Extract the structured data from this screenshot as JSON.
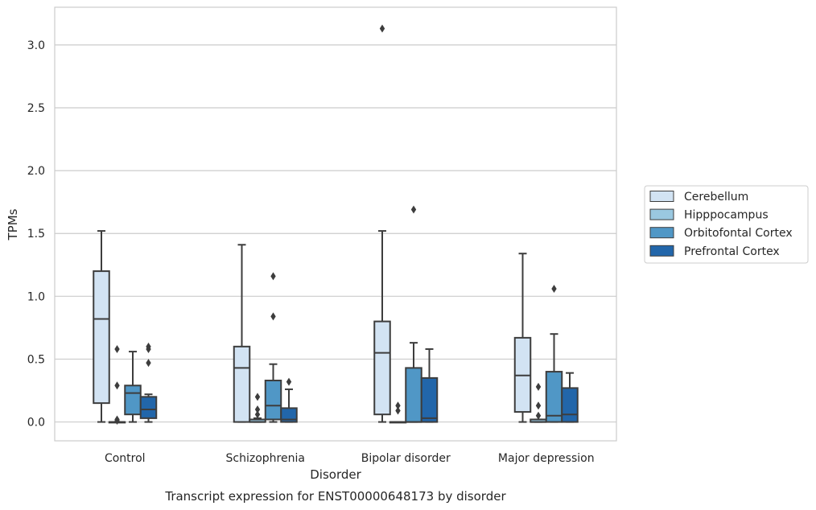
{
  "chart_data": {
    "type": "box",
    "title": "Transcript expression for ENST00000648173 by disorder",
    "xlabel": "Disorder",
    "ylabel": "TPMs",
    "ylim": [
      -0.15,
      3.3
    ],
    "yticks": [
      "0.0",
      "0.5",
      "1.0",
      "1.5",
      "2.0",
      "2.5",
      "3.0"
    ],
    "grid": true,
    "legend_position": "right",
    "categories": [
      "Control",
      "Schizophrenia",
      "Bipolar disorder",
      "Major depression"
    ],
    "series": [
      {
        "name": "Cerebellum",
        "color": "#d2e3f3",
        "boxes": [
          {
            "whislo": 0.0,
            "q1": 0.15,
            "med": 0.82,
            "q3": 1.2,
            "whishi": 1.52,
            "fliers": []
          },
          {
            "whislo": 0.0,
            "q1": 0.0,
            "med": 0.43,
            "q3": 0.6,
            "whishi": 1.41,
            "fliers": []
          },
          {
            "whislo": 0.0,
            "q1": 0.06,
            "med": 0.55,
            "q3": 0.8,
            "whishi": 1.52,
            "fliers": [
              3.13
            ]
          },
          {
            "whislo": 0.0,
            "q1": 0.08,
            "med": 0.37,
            "q3": 0.67,
            "whishi": 1.34,
            "fliers": []
          }
        ]
      },
      {
        "name": "Hipppocampus",
        "color": "#9ac8e0",
        "boxes": [
          {
            "whislo": 0.0,
            "q1": 0.0,
            "med": 0.0,
            "q3": 0.0,
            "whishi": 0.0,
            "fliers": [
              0.58,
              0.29,
              0.02,
              0.01
            ]
          },
          {
            "whislo": 0.0,
            "q1": 0.0,
            "med": 0.0,
            "q3": 0.02,
            "whishi": 0.03,
            "fliers": [
              0.2,
              0.1,
              0.06
            ]
          },
          {
            "whislo": 0.0,
            "q1": 0.0,
            "med": 0.0,
            "q3": 0.0,
            "whishi": 0.0,
            "fliers": [
              0.13,
              0.09
            ]
          },
          {
            "whislo": 0.0,
            "q1": 0.0,
            "med": 0.0,
            "q3": 0.02,
            "whishi": 0.02,
            "fliers": [
              0.28,
              0.13,
              0.05
            ]
          }
        ]
      },
      {
        "name": "Orbitofontal Cortex",
        "color": "#5097c6",
        "boxes": [
          {
            "whislo": 0.0,
            "q1": 0.06,
            "med": 0.23,
            "q3": 0.29,
            "whishi": 0.56,
            "fliers": []
          },
          {
            "whislo": 0.0,
            "q1": 0.02,
            "med": 0.13,
            "q3": 0.33,
            "whishi": 0.46,
            "fliers": [
              1.16,
              0.84
            ]
          },
          {
            "whislo": 0.0,
            "q1": 0.0,
            "med": 0.0,
            "q3": 0.43,
            "whishi": 0.63,
            "fliers": [
              1.69
            ]
          },
          {
            "whislo": 0.0,
            "q1": 0.0,
            "med": 0.05,
            "q3": 0.4,
            "whishi": 0.7,
            "fliers": [
              1.06
            ]
          }
        ]
      },
      {
        "name": "Prefrontal Cortex",
        "color": "#2266aa",
        "boxes": [
          {
            "whislo": 0.0,
            "q1": 0.03,
            "med": 0.1,
            "q3": 0.2,
            "whishi": 0.22,
            "fliers": [
              0.6,
              0.58,
              0.47
            ]
          },
          {
            "whislo": 0.0,
            "q1": 0.0,
            "med": 0.02,
            "q3": 0.11,
            "whishi": 0.26,
            "fliers": [
              0.32
            ]
          },
          {
            "whislo": 0.0,
            "q1": 0.0,
            "med": 0.03,
            "q3": 0.35,
            "whishi": 0.58,
            "fliers": []
          },
          {
            "whislo": 0.0,
            "q1": 0.0,
            "med": 0.06,
            "q3": 0.27,
            "whishi": 0.39,
            "fliers": []
          }
        ]
      }
    ]
  }
}
